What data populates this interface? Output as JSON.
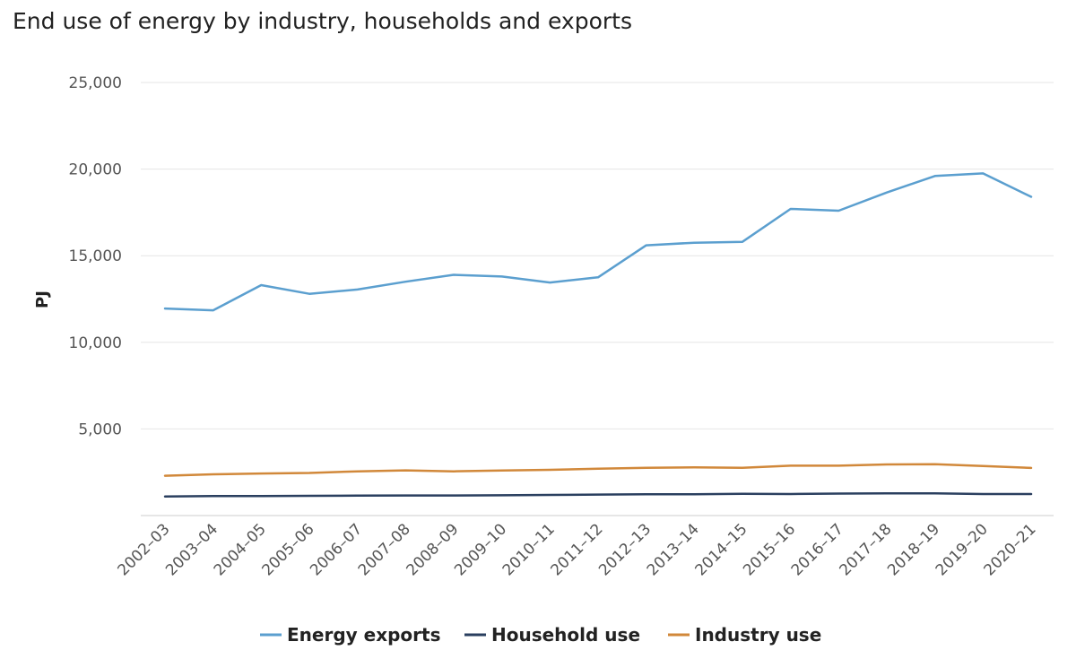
{
  "chart_data": {
    "type": "line",
    "title": "End use of energy by industry, households and exports",
    "xlabel": "",
    "ylabel": "PJ",
    "ylim": [
      0,
      25000
    ],
    "yticks": [
      5000,
      10000,
      15000,
      20000,
      25000
    ],
    "ytick_labels": [
      "5,000",
      "10,000",
      "15,000",
      "20,000",
      "25,000"
    ],
    "grid": true,
    "legend_position": "bottom",
    "categories": [
      "2002–03",
      "2003–04",
      "2004–05",
      "2005–06",
      "2006–07",
      "2007–08",
      "2008–09",
      "2009–10",
      "2010–11",
      "2011–12",
      "2012–13",
      "2013–14",
      "2014–15",
      "2015–16",
      "2016–17",
      "2017–18",
      "2018–19",
      "2019–20",
      "2020–21"
    ],
    "series": [
      {
        "name": "Energy exports",
        "color": "#5b9fcf",
        "values": [
          11950,
          11850,
          13300,
          12800,
          13050,
          13500,
          13900,
          13800,
          13450,
          13750,
          15600,
          15750,
          15800,
          17700,
          17600,
          18650,
          19600,
          19750,
          18400
        ]
      },
      {
        "name": "Household use",
        "color": "#2a3f5f",
        "values": [
          1100,
          1130,
          1130,
          1140,
          1150,
          1160,
          1160,
          1170,
          1190,
          1210,
          1230,
          1230,
          1260,
          1240,
          1270,
          1280,
          1280,
          1240,
          1240
        ]
      },
      {
        "name": "Industry use",
        "color": "#d1883a",
        "values": [
          2300,
          2380,
          2430,
          2460,
          2550,
          2610,
          2550,
          2600,
          2640,
          2700,
          2760,
          2780,
          2760,
          2880,
          2880,
          2950,
          2960,
          2860,
          2750
        ]
      }
    ]
  }
}
